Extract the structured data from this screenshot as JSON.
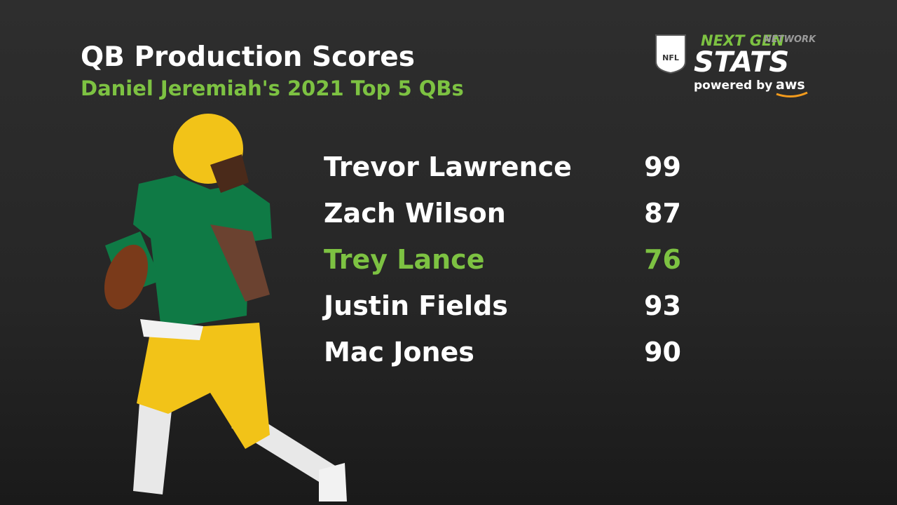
{
  "header": {
    "title": "QB Production Scores",
    "subtitle": "Daniel Jeremiah's 2021 Top 5 QBs"
  },
  "logo": {
    "league": "NFL",
    "brand_top": "NEXT GEN",
    "network": "NETWORK",
    "brand_main": "STATS",
    "powered_by": "powered by",
    "sponsor": "aws"
  },
  "table": {
    "default_color": "#ffffff",
    "rows": [
      {
        "name": "Trevor Lawrence",
        "score": 99
      },
      {
        "name": "Zach Wilson",
        "score": 87
      },
      {
        "name": "Trey Lance",
        "score": 76,
        "color": "#7dc242"
      },
      {
        "name": "Justin Fields",
        "score": 93
      },
      {
        "name": "Mac Jones",
        "score": 90
      }
    ]
  }
}
